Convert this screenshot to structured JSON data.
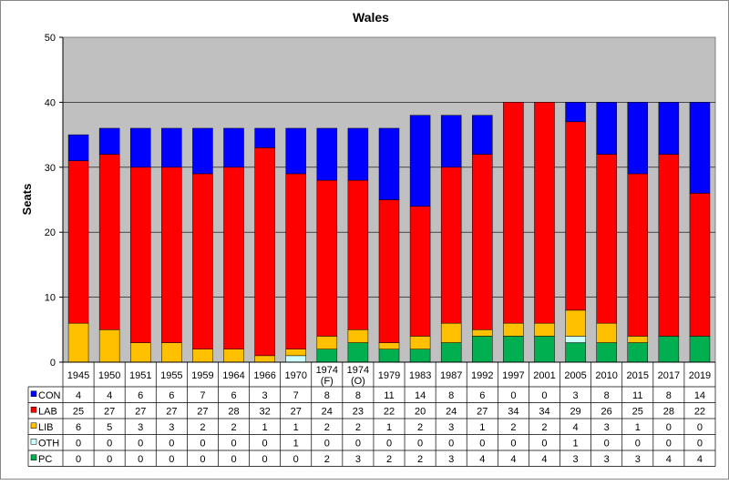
{
  "chart_data": {
    "type": "bar",
    "stacked": true,
    "title": "Wales",
    "xlabel": "",
    "ylabel": "Seats",
    "ylim": [
      0,
      50
    ],
    "yticks": [
      0,
      10,
      20,
      30,
      40,
      50
    ],
    "grid": true,
    "plot_background": "#c0c0c0",
    "legend": "data-table-left",
    "categories": [
      "1945",
      "1950",
      "1951",
      "1955",
      "1959",
      "1964",
      "1966",
      "1970",
      [
        "1974",
        "(F)"
      ],
      [
        "1974",
        "(O)"
      ],
      "1979",
      "1983",
      "1987",
      "1992",
      "1997",
      "2001",
      "2005",
      "2010",
      "2015",
      "2017",
      "2019"
    ],
    "series": [
      {
        "name": "CON",
        "color": "#0000ff",
        "values": [
          4,
          4,
          6,
          6,
          7,
          6,
          3,
          7,
          8,
          8,
          11,
          14,
          8,
          6,
          0,
          0,
          3,
          8,
          11,
          8,
          14
        ]
      },
      {
        "name": "LAB",
        "color": "#ff0000",
        "values": [
          25,
          27,
          27,
          27,
          27,
          28,
          32,
          27,
          24,
          23,
          22,
          20,
          24,
          27,
          34,
          34,
          29,
          26,
          25,
          28,
          22
        ]
      },
      {
        "name": "LIB",
        "color": "#ffc000",
        "values": [
          6,
          5,
          3,
          3,
          2,
          2,
          1,
          1,
          2,
          2,
          1,
          2,
          3,
          1,
          2,
          2,
          4,
          3,
          1,
          0,
          0
        ]
      },
      {
        "name": "OTH",
        "color": "#ccffff",
        "values": [
          0,
          0,
          0,
          0,
          0,
          0,
          0,
          1,
          0,
          0,
          0,
          0,
          0,
          0,
          0,
          0,
          1,
          0,
          0,
          0,
          0
        ]
      },
      {
        "name": "PC",
        "color": "#00b050",
        "values": [
          0,
          0,
          0,
          0,
          0,
          0,
          0,
          0,
          2,
          3,
          2,
          2,
          3,
          4,
          4,
          4,
          3,
          3,
          3,
          4,
          4
        ]
      }
    ],
    "stack_order_bottom_to_top": [
      "PC",
      "OTH",
      "LIB",
      "LAB",
      "CON"
    ]
  }
}
